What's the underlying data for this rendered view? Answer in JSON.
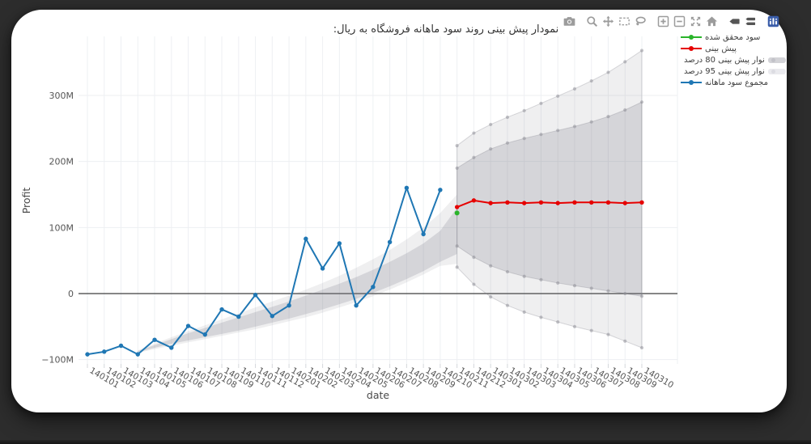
{
  "frame": {
    "background": "#2d2d2d",
    "panel_background": "#ffffff"
  },
  "title": "نمودار پیش بینی روند سود ماهانه فروشگاه به ریال:",
  "modebar": {
    "icons": [
      "camera",
      "zoom",
      "pan",
      "box-select",
      "lasso",
      "zoom-in",
      "zoom-out",
      "autoscale",
      "home",
      "hover-closest",
      "hover-compare",
      "plotly-logo"
    ],
    "icon_color": "#9c9c9c",
    "active_icon_color": "#555555",
    "logo_color": "#3a5da9"
  },
  "legend": {
    "position": "right",
    "items": [
      {
        "label": "سود محقق شده",
        "type": "line",
        "color": "#2ab42a",
        "symbol_side": "left"
      },
      {
        "label": "پیش بینی",
        "type": "line",
        "color": "#e60000",
        "symbol_side": "left"
      },
      {
        "label": "نوار پیش بینی 80 درصد",
        "type": "band",
        "color": "#d3d3d7",
        "dot": "#c2c2c8",
        "symbol_side": "right"
      },
      {
        "label": "نوار پیش بینی 95 درصد",
        "type": "band",
        "color": "#eaeaee",
        "dot": "#dcdce2",
        "symbol_side": "right"
      },
      {
        "label": "مجموع سود ماهانه",
        "type": "line",
        "color": "#1f77b4",
        "symbol_side": "left"
      }
    ]
  },
  "chart_data": {
    "type": "line",
    "title": "نمودار پیش بینی روند سود ماهانه فروشگاه به ریال:",
    "xlabel": "date",
    "ylabel": "Profit",
    "x_categories": [
      "140101",
      "140102",
      "140103",
      "140104",
      "140105",
      "140106",
      "140107",
      "140108",
      "140109",
      "140110",
      "140111",
      "140112",
      "140201",
      "140202",
      "140203",
      "140204",
      "140205",
      "140206",
      "140207",
      "140208",
      "140209",
      "140210",
      "140211",
      "140212",
      "140301",
      "140302",
      "140303",
      "140304",
      "140305",
      "140306",
      "140307",
      "140308",
      "140309",
      "140310"
    ],
    "y_ticks": [
      {
        "label": "300M",
        "value": 300
      },
      {
        "label": "200M",
        "value": 200
      },
      {
        "label": "100M",
        "value": 100
      },
      {
        "label": "0",
        "value": 0
      },
      {
        "label": "−100M",
        "value": -100
      }
    ],
    "ylim": [
      -107,
      388
    ],
    "grid": true,
    "legend_position": "right",
    "units": "millions of Rials",
    "series": [
      {
        "name": "نوار پیش بینی 95 درصد",
        "type": "band",
        "level": 95,
        "segments": [
          {
            "start_index": 3,
            "upper": [
              -86,
              -76,
              -66,
              -57,
              -48,
              -39,
              -30,
              -21,
              -12,
              -3,
              6,
              16,
              27,
              39,
              52,
              66,
              82,
              100,
              122,
              150
            ],
            "lower": [
              -90,
              -84,
              -79,
              -74,
              -69,
              -64,
              -59,
              -54,
              -48,
              -42,
              -36,
              -29,
              -21,
              -13,
              -4,
              6,
              17,
              29,
              42,
              45
            ]
          },
          {
            "start_index": 22,
            "forecast": true,
            "upper": [
              224,
              243,
              256,
              267,
              277,
              288,
              299,
              310,
              322,
              335,
              351,
              368
            ],
            "lower": [
              40,
              14,
              -5,
              -18,
              -28,
              -36,
              -43,
              -50,
              -56,
              -62,
              -72,
              -82
            ]
          }
        ]
      },
      {
        "name": "نوار پیش بینی 80 درصد",
        "type": "band",
        "level": 80,
        "segments": [
          {
            "start_index": 3,
            "upper": [
              -87,
              -78,
              -69,
              -60,
              -52,
              -44,
              -36,
              -28,
              -20,
              -12,
              -3,
              6,
              15,
              25,
              36,
              48,
              61,
              76,
              95,
              130
            ],
            "lower": [
              -89,
              -82,
              -76,
              -71,
              -66,
              -61,
              -56,
              -50,
              -44,
              -38,
              -31,
              -24,
              -16,
              -8,
              1,
              11,
              22,
              34,
              48,
              60
            ]
          },
          {
            "start_index": 22,
            "forecast": true,
            "upper": [
              190,
              206,
              219,
              228,
              235,
              241,
              247,
              253,
              260,
              268,
              278,
              290
            ],
            "lower": [
              72,
              55,
              42,
              33,
              26,
              21,
              16,
              12,
              8,
              4,
              0,
              -4
            ]
          }
        ]
      },
      {
        "name": "مجموع سود ماهانه",
        "type": "line+markers",
        "color": "#1f77b4",
        "start_index": 0,
        "values": [
          -92,
          -88,
          -79,
          -92,
          -70,
          -82,
          -49,
          -62,
          -24,
          -35,
          -2,
          -34,
          -18,
          83,
          38,
          76,
          -18,
          10,
          78,
          160,
          90,
          157
        ]
      },
      {
        "name": "پیش بینی",
        "type": "line+markers",
        "color": "#e60000",
        "start_index": 22,
        "values": [
          131,
          141,
          137,
          138,
          137,
          138,
          137,
          138,
          138,
          138,
          137,
          138
        ]
      },
      {
        "name": "سود محقق شده",
        "type": "markers",
        "color": "#2ab42a",
        "start_index": 22,
        "values": [
          122
        ]
      }
    ]
  }
}
